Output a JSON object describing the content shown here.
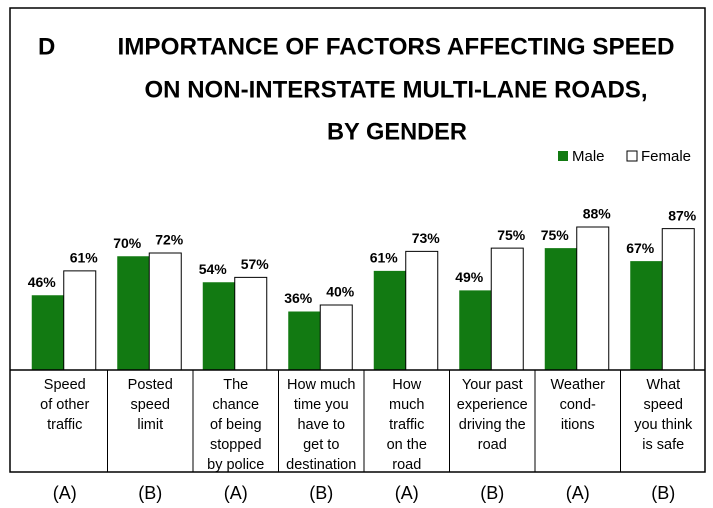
{
  "chart_data": {
    "type": "bar",
    "panel": "D",
    "title": [
      "IMPORTANCE OF FACTORS AFFECTING SPEED",
      "ON NON-INTERSTATE MULTI-LANE ROADS,",
      "BY GENDER"
    ],
    "categories": [
      [
        "Speed",
        "of other",
        "traffic"
      ],
      [
        "Posted",
        "speed",
        "limit"
      ],
      [
        "The",
        "chance",
        "of being",
        "stopped",
        "by police"
      ],
      [
        "How much",
        "time you",
        "have to",
        "get to",
        "destination"
      ],
      [
        "How",
        "much",
        "traffic",
        "on the",
        "road"
      ],
      [
        "Your past",
        "experience",
        "driving the",
        "road"
      ],
      [
        "Weather",
        "cond-",
        "itions"
      ],
      [
        "What",
        "speed",
        "you think",
        "is safe"
      ]
    ],
    "groups": [
      "(A)",
      "(B)",
      "(A)",
      "(B)",
      "(A)",
      "(B)",
      "(A)",
      "(B)"
    ],
    "series": [
      {
        "name": "Male",
        "color": "#127a12",
        "values": [
          46,
          70,
          54,
          36,
          61,
          49,
          75,
          67
        ],
        "value_labels": [
          "46%",
          "70%",
          "54%",
          "36%",
          "61%",
          "49%",
          "75%",
          "67%"
        ]
      },
      {
        "name": "Female",
        "color": "#ffffff",
        "values": [
          61,
          72,
          57,
          40,
          73,
          75,
          88,
          87
        ],
        "value_labels": [
          "61%",
          "72%",
          "57%",
          "40%",
          "73%",
          "75%",
          "88%",
          "87%"
        ]
      }
    ],
    "ylim": [
      0,
      100
    ],
    "legend": "top-right"
  }
}
